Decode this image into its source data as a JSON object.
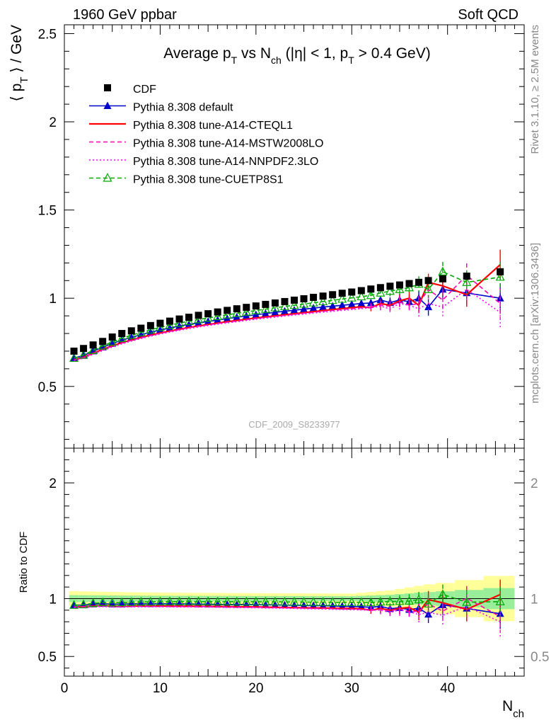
{
  "header": {
    "left": "1960 GeV ppbar",
    "right": "Soft QCD"
  },
  "side": {
    "rivet": "Rivet 3.1.10, ≥ 2.5M events",
    "mcplots": "mcplots.cern.ch [arXiv:1306.3436]"
  },
  "chart_data": {
    "type": "scatter",
    "title": "Average p_T vs N_ch (|η| < 1, p_T > 0.4 GeV)",
    "reference_label": "CDF_2009_S8233977",
    "xlabel": "N_ch",
    "ylabel": "⟨ p_T ⟩ / GeV",
    "xlim": [
      0,
      48
    ],
    "ylim": [
      0.15,
      2.55
    ],
    "xticks": [
      0,
      10,
      20,
      30,
      40
    ],
    "yticks": [
      0.5,
      1,
      1.5,
      2,
      2.5
    ],
    "x": [
      1,
      2,
      3,
      4,
      5,
      6,
      7,
      8,
      9,
      10,
      11,
      12,
      13,
      14,
      15,
      16,
      17,
      18,
      19,
      20,
      21,
      22,
      23,
      24,
      25,
      26,
      27,
      28,
      29,
      30,
      31,
      32,
      33,
      34,
      35,
      36,
      37,
      38,
      39.5,
      42,
      45.5
    ],
    "series": [
      {
        "name": "CDF",
        "color": "#000000",
        "marker": "square",
        "line": "none",
        "values": [
          0.7,
          0.715,
          0.735,
          0.755,
          0.78,
          0.8,
          0.815,
          0.83,
          0.845,
          0.858,
          0.87,
          0.882,
          0.892,
          0.903,
          0.912,
          0.922,
          0.931,
          0.94,
          0.948,
          0.956,
          0.965,
          0.973,
          0.981,
          0.989,
          0.997,
          1.005,
          1.012,
          1.02,
          1.028,
          1.035,
          1.043,
          1.052,
          1.06,
          1.068,
          1.075,
          1.083,
          1.09,
          1.1,
          1.11,
          1.125,
          1.15
        ],
        "error_band": [
          0.03,
          0.03,
          0.03,
          0.03,
          0.03,
          0.03,
          0.03,
          0.03,
          0.03,
          0.03,
          0.03,
          0.03,
          0.03,
          0.03,
          0.03,
          0.03,
          0.03,
          0.03,
          0.03,
          0.03,
          0.03,
          0.03,
          0.03,
          0.03,
          0.03,
          0.03,
          0.03,
          0.03,
          0.03,
          0.03,
          0.035,
          0.04,
          0.045,
          0.05,
          0.06,
          0.07,
          0.08,
          0.09,
          0.1,
          0.12,
          0.15
        ]
      },
      {
        "name": "Pythia 8.308 default",
        "color": "#0000cc",
        "marker": "triangle",
        "line": "solid",
        "values": [
          0.66,
          0.675,
          0.7,
          0.722,
          0.743,
          0.762,
          0.778,
          0.793,
          0.807,
          0.82,
          0.831,
          0.842,
          0.851,
          0.86,
          0.868,
          0.876,
          0.884,
          0.892,
          0.899,
          0.906,
          0.913,
          0.92,
          0.926,
          0.932,
          0.938,
          0.944,
          0.95,
          0.955,
          0.96,
          0.965,
          0.97,
          0.973,
          0.99,
          0.975,
          0.99,
          0.98,
          1.0,
          0.95,
          1.05,
          1.03,
          1.0
        ]
      },
      {
        "name": "Pythia 8.308 tune-A14-CTEQL1",
        "color": "#ff0000",
        "marker": "none",
        "line": "solid",
        "values": [
          0.65,
          0.665,
          0.688,
          0.71,
          0.73,
          0.748,
          0.763,
          0.778,
          0.791,
          0.803,
          0.814,
          0.824,
          0.834,
          0.843,
          0.851,
          0.859,
          0.867,
          0.874,
          0.881,
          0.888,
          0.894,
          0.9,
          0.906,
          0.912,
          0.918,
          0.924,
          0.93,
          0.936,
          0.941,
          0.947,
          0.952,
          0.946,
          0.97,
          0.96,
          0.985,
          1.0,
          0.96,
          1.09,
          1.07,
          1.02,
          1.19
        ]
      },
      {
        "name": "Pythia 8.308 tune-A14-MSTW2008LO",
        "color": "#ff00aa",
        "marker": "none",
        "line": "dashed",
        "values": [
          0.65,
          0.665,
          0.687,
          0.708,
          0.728,
          0.746,
          0.761,
          0.776,
          0.789,
          0.801,
          0.812,
          0.822,
          0.832,
          0.841,
          0.849,
          0.857,
          0.864,
          0.871,
          0.878,
          0.885,
          0.891,
          0.897,
          0.903,
          0.909,
          0.915,
          0.92,
          0.926,
          0.931,
          0.936,
          0.941,
          0.946,
          0.951,
          0.96,
          0.955,
          0.98,
          0.96,
          0.97,
          1.05,
          0.99,
          1.13,
          0.97
        ]
      },
      {
        "name": "Pythia 8.308 tune-A14-NNPDF2.3LO",
        "color": "#ff00ff",
        "marker": "none",
        "line": "dotted",
        "values": [
          0.645,
          0.66,
          0.682,
          0.703,
          0.723,
          0.741,
          0.757,
          0.771,
          0.785,
          0.797,
          0.808,
          0.818,
          0.828,
          0.837,
          0.845,
          0.853,
          0.86,
          0.867,
          0.874,
          0.881,
          0.887,
          0.893,
          0.899,
          0.905,
          0.91,
          0.916,
          0.921,
          0.926,
          0.931,
          0.936,
          0.941,
          0.946,
          0.955,
          0.94,
          0.97,
          0.96,
          0.94,
          0.97,
          0.95,
          1.05,
          0.92
        ]
      },
      {
        "name": "Pythia 8.308 tune-CUETP8S1",
        "color": "#00aa00",
        "marker": "triangle-open",
        "line": "dashed",
        "values": [
          0.66,
          0.678,
          0.705,
          0.73,
          0.752,
          0.773,
          0.79,
          0.806,
          0.821,
          0.835,
          0.847,
          0.859,
          0.869,
          0.879,
          0.888,
          0.897,
          0.906,
          0.914,
          0.922,
          0.93,
          0.938,
          0.946,
          0.953,
          0.96,
          0.967,
          0.974,
          0.981,
          0.988,
          0.995,
          1.002,
          1.009,
          1.016,
          1.03,
          1.04,
          1.05,
          1.06,
          1.08,
          1.05,
          1.15,
          1.09,
          1.12
        ]
      }
    ],
    "ratio_panel": {
      "ylabel": "Ratio to CDF",
      "ylim": [
        0.33,
        2.3
      ],
      "yticks": [
        0.5,
        1,
        2
      ],
      "reference": 1
    }
  }
}
